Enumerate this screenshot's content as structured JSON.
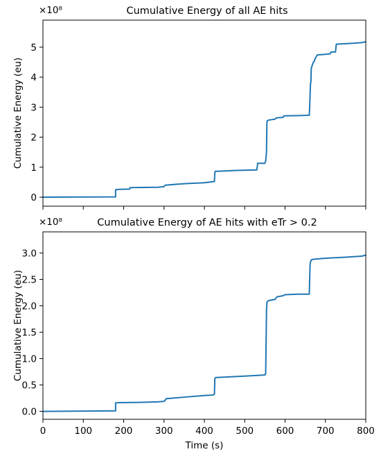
{
  "chart_data": [
    {
      "type": "line",
      "title": "Cumulative Energy of all AE hits",
      "ylabel": "Cumulative Energy (eu)",
      "xlabel": "",
      "multiplier": "×10⁸",
      "xlim": [
        0,
        800
      ],
      "ylim": [
        -0.3,
        5.9
      ],
      "xticks": [
        0,
        100,
        200,
        300,
        400,
        500,
        600,
        700,
        800
      ],
      "show_xtick_labels": false,
      "yticks": [
        0,
        1,
        2,
        3,
        4,
        5
      ],
      "ytick_labels": [
        "0",
        "1",
        "2",
        "3",
        "4",
        "5"
      ],
      "grid": false,
      "color": "#1f77b4",
      "series": [
        {
          "x": [
            0,
            180,
            180,
            190,
            215,
            216,
            285,
            300,
            303,
            350,
            400,
            425,
            425,
            426,
            427,
            480,
            530,
            532,
            532,
            550,
            552,
            554,
            555,
            556,
            560,
            575,
            578,
            595,
            597,
            635,
            660,
            661,
            663,
            664,
            665,
            668,
            670,
            672,
            675,
            678,
            680,
            700,
            712,
            714,
            725,
            727,
            770,
            790,
            800
          ],
          "y": [
            0.0,
            0.01,
            0.25,
            0.26,
            0.27,
            0.32,
            0.33,
            0.35,
            0.4,
            0.45,
            0.48,
            0.52,
            0.55,
            0.82,
            0.86,
            0.89,
            0.91,
            1.1,
            1.13,
            1.13,
            1.2,
            1.5,
            2.48,
            2.55,
            2.57,
            2.6,
            2.64,
            2.66,
            2.71,
            2.72,
            2.73,
            3.0,
            3.78,
            3.82,
            4.3,
            4.42,
            4.5,
            4.52,
            4.63,
            4.7,
            4.74,
            4.76,
            4.78,
            4.84,
            4.84,
            5.1,
            5.13,
            5.15,
            5.18
          ]
        }
      ]
    },
    {
      "type": "line",
      "title": "Cumulative Energy of AE hits with eTr > 0.2",
      "ylabel": "Cumulative Energy (eu)",
      "xlabel": "Time (s)",
      "multiplier": "×10⁸",
      "xlim": [
        0,
        800
      ],
      "ylim": [
        -0.15,
        3.4
      ],
      "xticks": [
        0,
        100,
        200,
        300,
        400,
        500,
        600,
        700,
        800
      ],
      "xtick_labels": [
        "0",
        "100",
        "200",
        "300",
        "400",
        "500",
        "600",
        "700",
        "800"
      ],
      "show_xtick_labels": true,
      "yticks": [
        0.0,
        0.5,
        1.0,
        1.5,
        2.0,
        2.5,
        3.0
      ],
      "ytick_labels": [
        "0.0",
        "0.5",
        "1.0",
        "1.5",
        "2.0",
        "2.5",
        "3.0"
      ],
      "grid": false,
      "color": "#1f77b4",
      "series": [
        {
          "x": [
            0,
            180,
            180,
            190,
            240,
            285,
            300,
            303,
            305,
            350,
            400,
            422,
            425,
            426,
            428,
            480,
            530,
            550,
            552,
            554,
            555,
            556,
            560,
            575,
            580,
            595,
            600,
            635,
            660,
            662,
            663,
            665,
            670,
            700,
            750,
            790,
            800
          ],
          "y": [
            0.0,
            0.01,
            0.16,
            0.165,
            0.17,
            0.18,
            0.19,
            0.21,
            0.24,
            0.27,
            0.3,
            0.31,
            0.33,
            0.62,
            0.64,
            0.66,
            0.68,
            0.69,
            0.72,
            1.9,
            2.05,
            2.08,
            2.1,
            2.12,
            2.17,
            2.19,
            2.21,
            2.22,
            2.22,
            2.78,
            2.83,
            2.87,
            2.88,
            2.9,
            2.92,
            2.94,
            2.96
          ]
        }
      ]
    }
  ]
}
